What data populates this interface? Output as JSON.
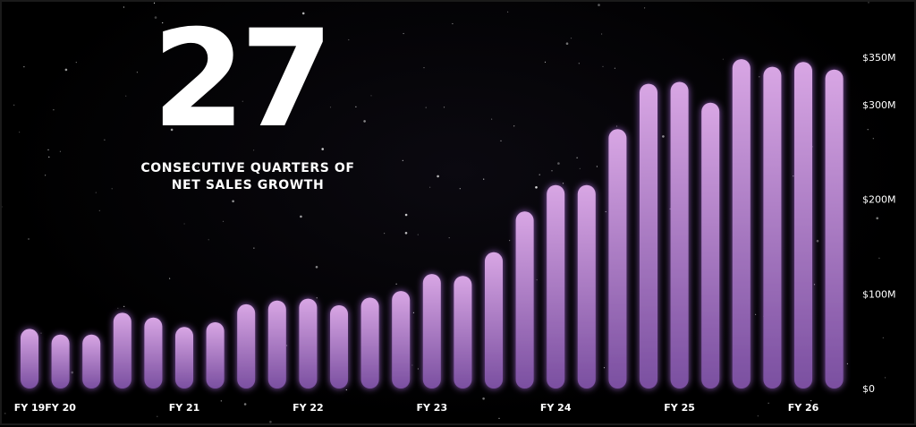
{
  "headline": {
    "number": "27",
    "caption_line1": "CONSECUTIVE QUARTERS OF",
    "caption_line2": "NET SALES GROWTH"
  },
  "colors": {
    "background": "#000000",
    "bar_top": "#d8a6e4",
    "bar_bottom": "#7a4fa0",
    "glow": "#9a62c8",
    "text": "#ffffff"
  },
  "chart_data": {
    "type": "bar",
    "title": "",
    "xlabel": "",
    "ylabel": "",
    "ylim": [
      0,
      350
    ],
    "y_unit": "M",
    "y_ticks": [
      {
        "value": 0,
        "label": "$0"
      },
      {
        "value": 100,
        "label": "$100M"
      },
      {
        "value": 200,
        "label": "$200M"
      },
      {
        "value": 300,
        "label": "$300M"
      },
      {
        "value": 350,
        "label": "$350M"
      }
    ],
    "x_tick_labels": [
      {
        "index": 0,
        "label": "FY 19"
      },
      {
        "index": 1,
        "label": "FY 20"
      },
      {
        "index": 5,
        "label": "FY 21"
      },
      {
        "index": 9,
        "label": "FY 22"
      },
      {
        "index": 13,
        "label": "FY 23"
      },
      {
        "index": 17,
        "label": "FY 24"
      },
      {
        "index": 21,
        "label": "FY 25"
      },
      {
        "index": 25,
        "label": "FY 26"
      }
    ],
    "values": [
      63,
      57,
      57,
      80,
      75,
      65,
      70,
      89,
      93,
      95,
      88,
      96,
      103,
      121,
      119,
      144,
      187,
      215,
      215,
      274,
      322,
      324,
      302,
      348,
      340,
      345,
      337
    ],
    "grid": false,
    "legend": "none"
  }
}
